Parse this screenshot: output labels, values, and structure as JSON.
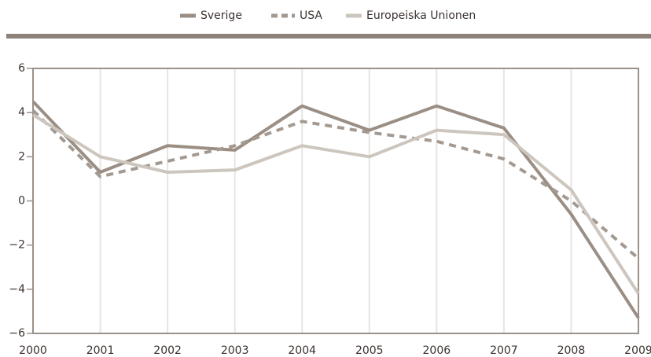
{
  "chart_data": {
    "type": "line",
    "x": [
      2000,
      2001,
      2002,
      2003,
      2004,
      2005,
      2006,
      2007,
      2008,
      2009
    ],
    "xlim": [
      2000,
      2009
    ],
    "xticks": [
      2000,
      2001,
      2002,
      2003,
      2004,
      2005,
      2006,
      2007,
      2008,
      2009
    ],
    "ylim": [
      -6,
      6
    ],
    "yticks": [
      {
        "value": -6,
        "label": "−6"
      },
      {
        "value": -4,
        "label": "−4"
      },
      {
        "value": -2,
        "label": "−2"
      },
      0,
      2,
      4,
      6
    ],
    "grid": "x",
    "legend": "top",
    "series": [
      {
        "name": "Sverige",
        "color": "#9b8f85",
        "dash": false,
        "values": [
          4.5,
          1.3,
          2.5,
          2.3,
          4.3,
          3.2,
          4.3,
          3.3,
          -0.6,
          -5.3
        ]
      },
      {
        "name": "USA",
        "color": "#a39990",
        "dash": true,
        "values": [
          4.1,
          1.1,
          1.8,
          2.5,
          3.6,
          3.1,
          2.7,
          1.9,
          0.0,
          -2.6
        ]
      },
      {
        "name": "Europeiska Unionen",
        "color": "#cdc6be",
        "dash": false,
        "values": [
          3.9,
          2.0,
          1.3,
          1.4,
          2.5,
          2.0,
          3.2,
          3.0,
          0.5,
          -4.2
        ]
      }
    ]
  }
}
